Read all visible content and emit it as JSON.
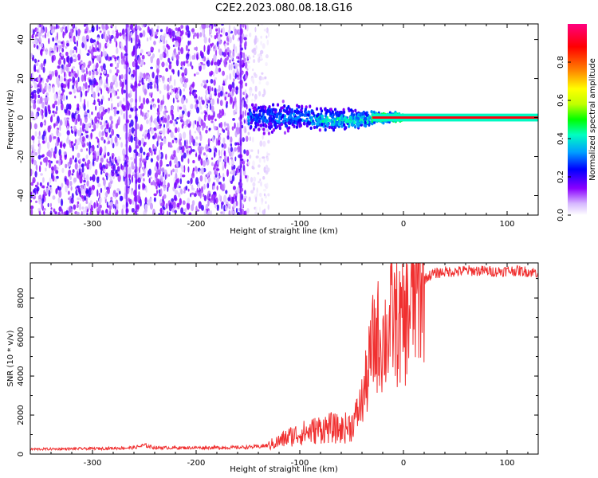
{
  "figure": {
    "title": "C2E2.2023.080.08.18.G16"
  },
  "colors": {
    "snr_line": "#f03030",
    "grid_tick": "#000000",
    "background": "#ffffff"
  },
  "chart_data": [
    {
      "type": "heatmap",
      "title": "",
      "xlabel": "Height of straight line (km)",
      "ylabel": "Frequency (Hz)",
      "xlim": [
        -360,
        130
      ],
      "ylim": [
        -50,
        48
      ],
      "x_ticks": [
        -300,
        -200,
        -100,
        0,
        100
      ],
      "y_ticks": [
        -40,
        -20,
        0,
        20,
        40
      ],
      "colorbar": {
        "label": "Normalized spectral amplitude",
        "range": [
          0.0,
          1.0
        ],
        "ticks": [
          0.0,
          0.2,
          0.4,
          0.6,
          0.8
        ],
        "colormap": [
          "#ffffff",
          "#d6b8ff",
          "#8a00ff",
          "#0000ff",
          "#00a0ff",
          "#00ffc0",
          "#00ff00",
          "#c0ff00",
          "#ffff00",
          "#ff8000",
          "#ff0000",
          "#ff0080"
        ]
      },
      "regions": [
        {
          "x_range": [
            -360,
            -150
          ],
          "freq_range": [
            -50,
            48
          ],
          "amplitude": 0.15,
          "description": "broadband noise"
        },
        {
          "x_range": [
            -150,
            -130
          ],
          "freq_range": [
            -50,
            48
          ],
          "amplitude": 0.05,
          "description": "sparse noise"
        },
        {
          "x_range": [
            -150,
            -90
          ],
          "freq_range": [
            -10,
            10
          ],
          "amplitude": 0.35
        },
        {
          "x_range": [
            -90,
            -30
          ],
          "freq_range": [
            -8,
            6
          ],
          "amplitude": 0.45
        },
        {
          "x_range": [
            -30,
            0
          ],
          "freq_range": [
            -3,
            3
          ],
          "amplitude": 0.7
        },
        {
          "x_range": [
            0,
            130
          ],
          "freq_range": [
            -1,
            1
          ],
          "amplitude": 0.95
        }
      ]
    },
    {
      "type": "line",
      "title": "",
      "xlabel": "Height of straight line (km)",
      "ylabel": "SNR (10 * v/v)",
      "xlim": [
        -360,
        130
      ],
      "ylim": [
        0,
        9800
      ],
      "x_ticks": [
        -300,
        -200,
        -100,
        0,
        100
      ],
      "y_ticks": [
        0,
        2000,
        4000,
        6000,
        8000
      ],
      "series": [
        {
          "x": [
            -360,
            -340,
            -320,
            -300,
            -280,
            -260,
            -250,
            -240,
            -220,
            -200,
            -180,
            -160,
            -140,
            -130,
            -120,
            -110,
            -100,
            -90,
            -80,
            -70,
            -60,
            -50,
            -45,
            -40,
            -35,
            -30,
            -25,
            -20,
            -15,
            -10,
            -5,
            0,
            5,
            10,
            15,
            20,
            25,
            30,
            35,
            40,
            50,
            60,
            70,
            80,
            90,
            100,
            110,
            120,
            130
          ],
          "y": [
            250,
            260,
            270,
            280,
            300,
            330,
            450,
            330,
            320,
            330,
            330,
            340,
            380,
            450,
            650,
            900,
            1050,
            1150,
            1300,
            1350,
            1250,
            1500,
            2000,
            2700,
            3900,
            5500,
            6100,
            5800,
            6200,
            7000,
            6600,
            6500,
            7300,
            8000,
            8600,
            8950,
            9150,
            9250,
            9300,
            9350,
            9350,
            9400,
            9400,
            9380,
            9350,
            9400,
            9400,
            9350,
            9300
          ]
        }
      ]
    }
  ]
}
